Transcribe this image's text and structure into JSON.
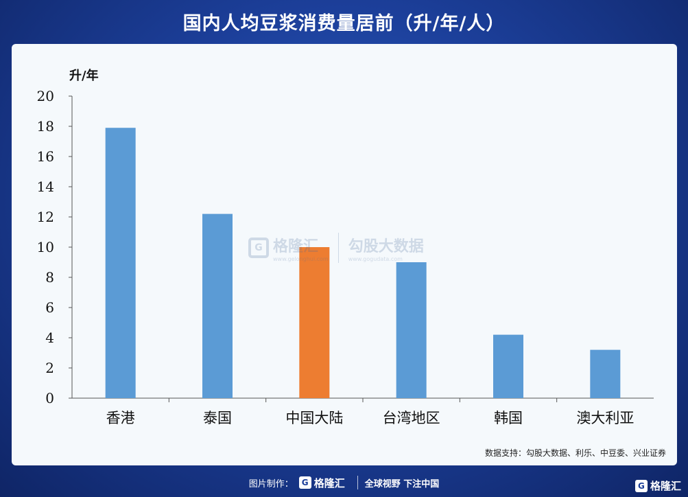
{
  "header": {
    "title": "国内人均豆浆消费量居前（升/年/人）"
  },
  "chart_data": {
    "type": "bar",
    "title": "国内人均豆浆消费量居前（升/年/人）",
    "ylabel": "升/年",
    "xlabel": "",
    "ylim": [
      0,
      20
    ],
    "yticks": [
      "0",
      "2",
      "4",
      "6",
      "8",
      "10",
      "12",
      "14",
      "16",
      "18",
      "20"
    ],
    "categories": [
      "香港",
      "泰国",
      "中国大陆",
      "台湾地区",
      "韩国",
      "澳大利亚"
    ],
    "values": [
      17.9,
      12.2,
      10.0,
      9.0,
      4.2,
      3.2
    ],
    "colors": [
      "#5b9bd5",
      "#5b9bd5",
      "#ed7d31",
      "#5b9bd5",
      "#5b9bd5",
      "#5b9bd5"
    ],
    "grid": false
  },
  "source": "数据支持：勾股大数据、利乐、中豆委、兴业证券",
  "watermark": {
    "brand": "格隆汇",
    "brand_url": "www.gelonghui.com",
    "partner": "勾股大数据",
    "partner_url": "www.gogudata.com"
  },
  "footer": {
    "made_by": "图片制作：",
    "logo_text": "格隆汇",
    "slogan": "全球视野 下注中国"
  },
  "corner_logo": "格隆汇"
}
